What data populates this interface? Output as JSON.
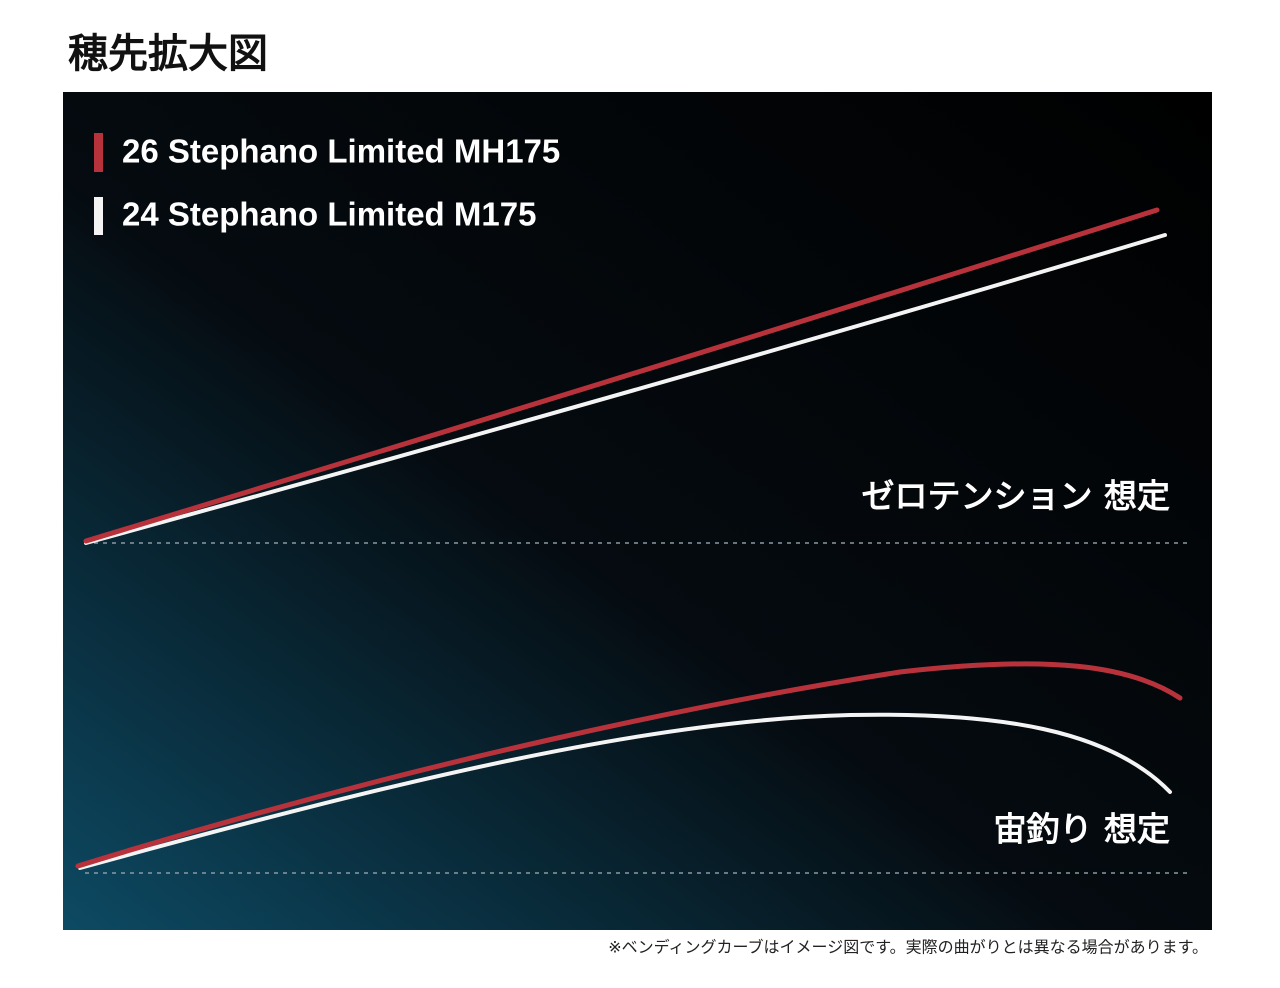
{
  "header": {
    "title": "穂先拡大図"
  },
  "legend": [
    {
      "label": "26 Stephano Limited MH175"
    },
    {
      "label": "24 Stephano Limited M175"
    }
  ],
  "cases": [
    {
      "label": "ゼロテンション 想定"
    },
    {
      "label": "宙釣り 想定"
    }
  ],
  "footnote": "※ベンディングカーブはイメージ図です。実際の曲がりとは異なる場合があります。"
}
